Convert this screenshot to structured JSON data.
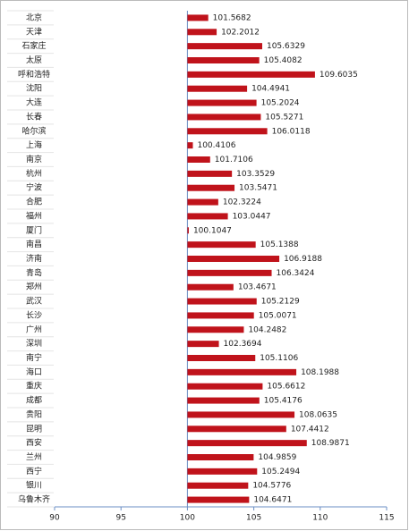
{
  "chart_data": {
    "type": "bar",
    "orientation": "horizontal",
    "categories": [
      "北京",
      "天津",
      "石家庄",
      "太原",
      "呼和浩特",
      "沈阳",
      "大连",
      "长春",
      "哈尔滨",
      "上海",
      "南京",
      "杭州",
      "宁波",
      "合肥",
      "福州",
      "厦门",
      "南昌",
      "济南",
      "青岛",
      "郑州",
      "武汉",
      "长沙",
      "广州",
      "深圳",
      "南宁",
      "海口",
      "重庆",
      "成都",
      "贵阳",
      "昆明",
      "西安",
      "兰州",
      "西宁",
      "银川",
      "乌鲁木齐"
    ],
    "values": [
      101.5682,
      102.2012,
      105.6329,
      105.4082,
      109.6035,
      104.4941,
      105.2024,
      105.5271,
      106.0118,
      100.4106,
      101.7106,
      103.3529,
      103.5471,
      102.3224,
      103.0447,
      100.1047,
      105.1388,
      106.9188,
      106.3424,
      103.4671,
      105.2129,
      105.0071,
      104.2482,
      102.3694,
      105.1106,
      108.1988,
      105.6612,
      105.4176,
      108.0635,
      107.4412,
      108.9871,
      104.9859,
      105.2494,
      104.5776,
      104.6471
    ],
    "color": "#c0131b",
    "xlim": [
      90,
      115
    ],
    "xticks": [
      90,
      95,
      100,
      105,
      110,
      115
    ],
    "axis_crosses_at": 100
  }
}
